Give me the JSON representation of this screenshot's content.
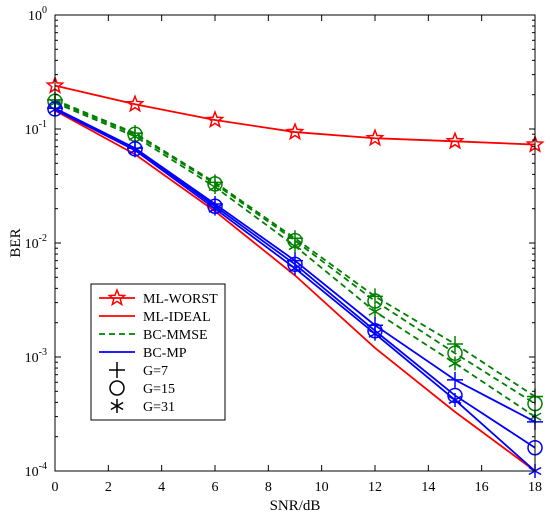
{
  "chart_data": {
    "type": "line",
    "title": "",
    "xlabel": "SNR/dB",
    "ylabel": "BER",
    "xlim": [
      0,
      18
    ],
    "ylim": [
      0.0001,
      1
    ],
    "yscale": "log",
    "grid": false,
    "x_ticks": [
      0,
      2,
      4,
      6,
      8,
      10,
      12,
      14,
      16,
      18
    ],
    "y_ticks": [
      {
        "value": 0.0001,
        "base": "10",
        "exp": "-4"
      },
      {
        "value": 0.001,
        "base": "10",
        "exp": "-3"
      },
      {
        "value": 0.01,
        "base": "10",
        "exp": "-2"
      },
      {
        "value": 0.1,
        "base": "10",
        "exp": "-1"
      },
      {
        "value": 1,
        "base": "10",
        "exp": "0"
      }
    ],
    "legend_position": "bottom-left",
    "legend": [
      {
        "label": "ML-WORST",
        "color": "#ff0000",
        "dash": "solid",
        "marker": "star"
      },
      {
        "label": "ML-IDEAL",
        "color": "#ff0000",
        "dash": "solid",
        "marker": "none"
      },
      {
        "label": "BC-MMSE",
        "color": "#008000",
        "dash": "dashed",
        "marker": "none"
      },
      {
        "label": "BC-MP",
        "color": "#0000ff",
        "dash": "solid",
        "marker": "none"
      },
      {
        "label": "G=7",
        "color": "#000000",
        "dash": "none",
        "marker": "plus"
      },
      {
        "label": "G=15",
        "color": "#000000",
        "dash": "none",
        "marker": "circle"
      },
      {
        "label": "G=31",
        "color": "#000000",
        "dash": "none",
        "marker": "asterisk"
      }
    ],
    "series": [
      {
        "legend": "ML-WORST",
        "color": "#ff0000",
        "dash": "solid",
        "marker": "star",
        "x": [
          0,
          3,
          6,
          9,
          12,
          15,
          18
        ],
        "y": [
          0.24,
          0.165,
          0.12,
          0.094,
          0.083,
          0.078,
          0.073
        ]
      },
      {
        "legend": "ML-IDEAL",
        "color": "#ff0000",
        "dash": "solid",
        "marker": "none",
        "x": [
          0,
          3,
          6,
          9,
          12,
          15,
          18
        ],
        "y": [
          0.145,
          0.06,
          0.019,
          0.0052,
          0.0012,
          0.00033,
          0.0001
        ]
      },
      {
        "legend": "BC-MMSE G=7",
        "color": "#008000",
        "dash": "dashed",
        "marker": "plus",
        "x": [
          0,
          3,
          6,
          9,
          12,
          15,
          18
        ],
        "y": [
          0.18,
          0.092,
          0.034,
          0.011,
          0.0034,
          0.0013,
          0.00045
        ]
      },
      {
        "legend": "BC-MMSE G=15",
        "color": "#008000",
        "dash": "dashed",
        "marker": "circle",
        "x": [
          0,
          3,
          6,
          9,
          12,
          15,
          18
        ],
        "y": [
          0.175,
          0.09,
          0.033,
          0.0105,
          0.0031,
          0.00108,
          0.00039
        ]
      },
      {
        "legend": "BC-MMSE G=31",
        "color": "#008000",
        "dash": "dashed",
        "marker": "asterisk",
        "x": [
          0,
          3,
          6,
          9,
          12,
          15,
          18
        ],
        "y": [
          0.17,
          0.086,
          0.031,
          0.0094,
          0.0025,
          0.00088,
          0.0003
        ]
      },
      {
        "legend": "BC-MP G=7",
        "color": "#0000ff",
        "dash": "solid",
        "marker": "plus",
        "x": [
          0,
          3,
          6,
          9,
          12,
          15,
          18
        ],
        "y": [
          0.152,
          0.068,
          0.022,
          0.007,
          0.0019,
          0.00063,
          0.00027
        ]
      },
      {
        "legend": "BC-MP G=15",
        "color": "#0000ff",
        "dash": "solid",
        "marker": "circle",
        "x": [
          0,
          3,
          6,
          9,
          12,
          15,
          18
        ],
        "y": [
          0.15,
          0.067,
          0.021,
          0.0065,
          0.0017,
          0.00046,
          0.00016
        ]
      },
      {
        "legend": "BC-MP G=31",
        "color": "#0000ff",
        "dash": "solid",
        "marker": "asterisk",
        "x": [
          0,
          3,
          6,
          9,
          12,
          15,
          18
        ],
        "y": [
          0.148,
          0.065,
          0.02,
          0.006,
          0.0016,
          0.00042,
          0.0001
        ]
      }
    ]
  }
}
